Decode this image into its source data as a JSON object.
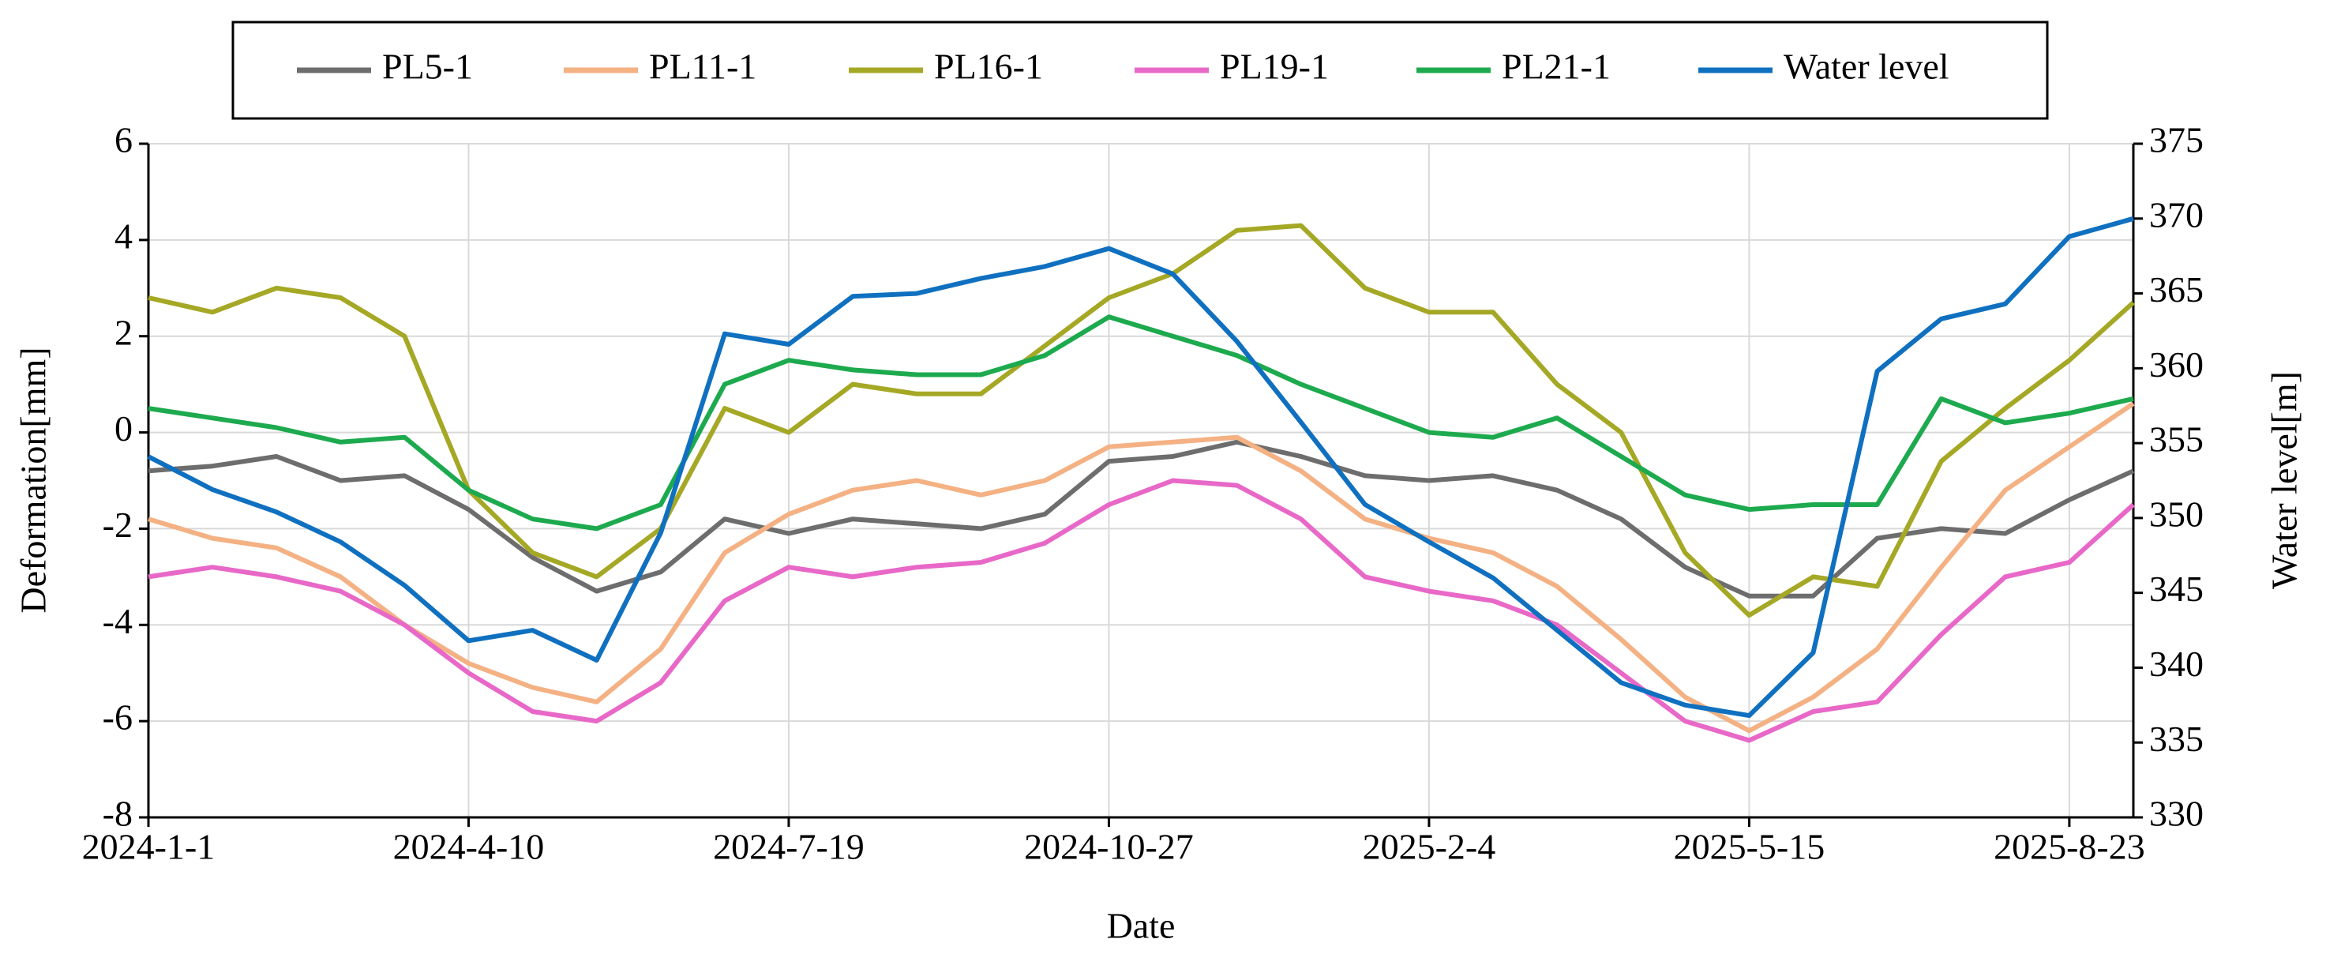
{
  "chart_data": {
    "type": "line",
    "x_label": "Date",
    "y_label": "Deformation[mm]",
    "y2_label": "Water level[m]",
    "x": [
      "2024-1-1",
      "2024-1-21",
      "2024-2-10",
      "2024-3-1",
      "2024-3-21",
      "2024-4-10",
      "2024-4-30",
      "2024-5-20",
      "2024-6-9",
      "2024-6-29",
      "2024-7-19",
      "2024-8-8",
      "2024-8-28",
      "2024-9-17",
      "2024-10-7",
      "2024-10-27",
      "2024-11-16",
      "2024-12-6",
      "2024-12-26",
      "2025-1-15",
      "2025-2-4",
      "2025-2-24",
      "2025-3-16",
      "2025-4-5",
      "2025-4-25",
      "2025-5-15",
      "2025-6-4",
      "2025-6-24",
      "2025-7-14",
      "2025-8-3",
      "2025-8-23",
      "2025-9-12"
    ],
    "xlim": [
      "2024-1-1",
      "2025-9-12"
    ],
    "xticks": [
      "2024-1-1",
      "2024-4-10",
      "2024-7-19",
      "2024-10-27",
      "2025-2-4",
      "2025-5-15",
      "2025-8-23"
    ],
    "ylim": [
      -8,
      6
    ],
    "yticks": [
      -8,
      -6,
      -4,
      -2,
      0,
      2,
      4,
      6
    ],
    "y2lim": [
      330,
      375
    ],
    "y2ticks": [
      330,
      335,
      340,
      345,
      350,
      355,
      360,
      365,
      370,
      375
    ],
    "grid": true,
    "legend": "top",
    "series": [
      {
        "name": "PL5-1",
        "color": "#6d6d6d",
        "values": [
          -0.8,
          -0.7,
          -0.5,
          -1.0,
          -0.9,
          -1.6,
          -2.6,
          -3.3,
          -2.9,
          -1.8,
          -2.1,
          -1.8,
          -1.9,
          -2.0,
          -1.7,
          -0.6,
          -0.5,
          -0.2,
          -0.5,
          -0.9,
          -1.0,
          -0.9,
          -1.2,
          -1.8,
          -2.8,
          -3.4,
          -3.4,
          -2.2,
          -2.0,
          -2.1,
          -1.4,
          -0.8
        ]
      },
      {
        "name": "PL11-1",
        "color": "#f4b183",
        "values": [
          -1.8,
          -2.2,
          -2.4,
          -3.0,
          -4.0,
          -4.8,
          -5.3,
          -5.6,
          -4.5,
          -2.5,
          -1.7,
          -1.2,
          -1.0,
          -1.3,
          -1.0,
          -0.3,
          -0.2,
          -0.1,
          -0.8,
          -1.8,
          -2.2,
          -2.5,
          -3.2,
          -4.3,
          -5.5,
          -6.2,
          -5.5,
          -4.5,
          -2.8,
          -1.2,
          -0.3,
          0.6
        ]
      },
      {
        "name": "PL16-1",
        "color": "#a5a825",
        "values": [
          2.8,
          2.5,
          3.0,
          2.8,
          2.0,
          -1.2,
          -2.5,
          -3.0,
          -2.0,
          0.5,
          0.0,
          1.0,
          0.8,
          0.8,
          1.8,
          2.8,
          3.3,
          4.2,
          4.3,
          3.0,
          2.5,
          2.5,
          1.0,
          0.0,
          -2.5,
          -3.8,
          -3.0,
          -3.2,
          -0.6,
          0.5,
          1.5,
          2.7
        ]
      },
      {
        "name": "PL19-1",
        "color": "#e868c8",
        "values": [
          -3.0,
          -2.8,
          -3.0,
          -3.3,
          -4.0,
          -5.0,
          -5.8,
          -6.0,
          -5.2,
          -3.5,
          -2.8,
          -3.0,
          -2.8,
          -2.7,
          -2.3,
          -1.5,
          -1.0,
          -1.1,
          -1.8,
          -3.0,
          -3.3,
          -3.5,
          -4.0,
          -5.0,
          -6.0,
          -6.4,
          -5.8,
          -5.6,
          -4.2,
          -3.0,
          -2.7,
          -1.5
        ]
      },
      {
        "name": "PL21-1",
        "color": "#1daa4e",
        "values": [
          0.5,
          0.3,
          0.1,
          -0.2,
          -0.1,
          -1.2,
          -1.8,
          -2.0,
          -1.5,
          1.0,
          1.5,
          1.3,
          1.2,
          1.2,
          1.6,
          2.4,
          2.0,
          1.6,
          1.0,
          0.5,
          0.0,
          -0.1,
          0.3,
          -0.5,
          -1.3,
          -1.6,
          -1.5,
          -1.5,
          0.7,
          0.2,
          0.4,
          0.7
        ]
      },
      {
        "name": "Water level",
        "color": "#1070c0",
        "axis": "y2",
        "values": [
          354.1,
          351.9,
          350.4,
          348.4,
          345.5,
          341.8,
          342.5,
          340.5,
          349.0,
          362.3,
          361.6,
          364.8,
          365.0,
          366.0,
          366.8,
          368.0,
          366.3,
          361.8,
          356.4,
          350.9,
          348.4,
          346.0,
          342.5,
          339.0,
          337.5,
          336.8,
          341.0,
          359.8,
          363.3,
          364.3,
          368.8,
          370.0
        ]
      }
    ]
  }
}
